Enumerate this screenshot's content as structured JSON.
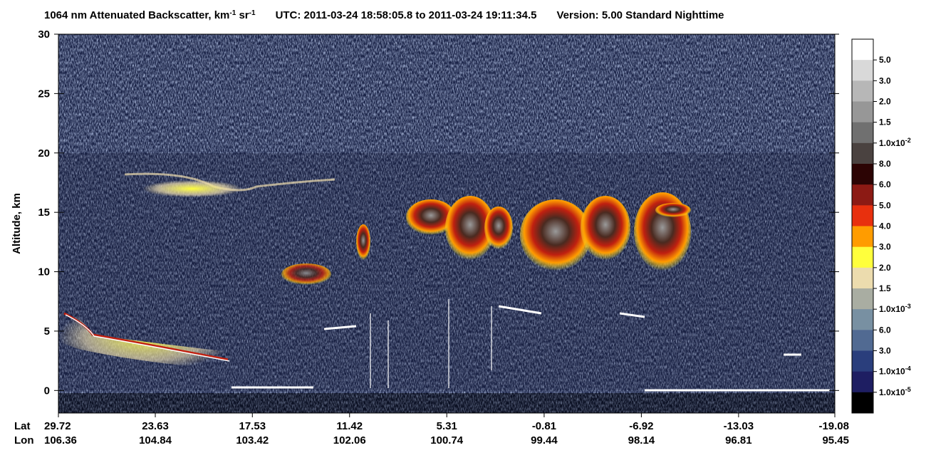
{
  "chart_data": {
    "type": "profile-image",
    "title_parts": [
      "1064 nm Attenuated Backscatter, km",
      "-1",
      " sr",
      "-1",
      "UTC:  2011-03-24 18:58:05.8  to  2011-03-24 19:11:34.5",
      "Version: 5.00  Standard  Nighttime"
    ],
    "y_label": "Altitude, km",
    "ylim": [
      -1.9,
      30
    ],
    "yticks": [
      0,
      5,
      10,
      15,
      20,
      25,
      30
    ],
    "x_row_labels": [
      "Lat",
      "Lon"
    ],
    "xlim": [
      29.72,
      -19.08
    ],
    "lat_ticks": [
      29.72,
      23.63,
      17.53,
      11.42,
      5.31,
      -0.81,
      -6.92,
      -13.03,
      -19.08
    ],
    "lon_ticks": [
      106.36,
      104.84,
      103.42,
      102.06,
      100.74,
      99.44,
      98.14,
      96.81,
      95.45
    ],
    "colorbar": {
      "colors": [
        "#ffffff",
        "#d9d9d9",
        "#b7b7b7",
        "#979797",
        "#707070",
        "#4a4240",
        "#2c0404",
        "#8c1a14",
        "#e8300e",
        "#ff9c00",
        "#ffff3c",
        "#ecdcae",
        "#a9ada2",
        "#7890a2",
        "#516a92",
        "#2a3e7c",
        "#1e1e62",
        "#000000"
      ],
      "labels": [
        {
          "text": "5.0"
        },
        {
          "text": "3.0"
        },
        {
          "text": "2.0"
        },
        {
          "text": "1.5"
        },
        {
          "text": "1.0x10",
          "sup": "-2"
        },
        {
          "text": "8.0"
        },
        {
          "text": "6.0"
        },
        {
          "text": "5.0"
        },
        {
          "text": "4.0"
        },
        {
          "text": "3.0"
        },
        {
          "text": "2.0"
        },
        {
          "text": "1.5"
        },
        {
          "text": "1.0x10",
          "sup": "-3"
        },
        {
          "text": "6.0"
        },
        {
          "text": "3.0"
        },
        {
          "text": "1.0x10",
          "sup": "-4"
        },
        {
          "text": "1.0x10",
          "sup": "-5"
        }
      ]
    }
  }
}
